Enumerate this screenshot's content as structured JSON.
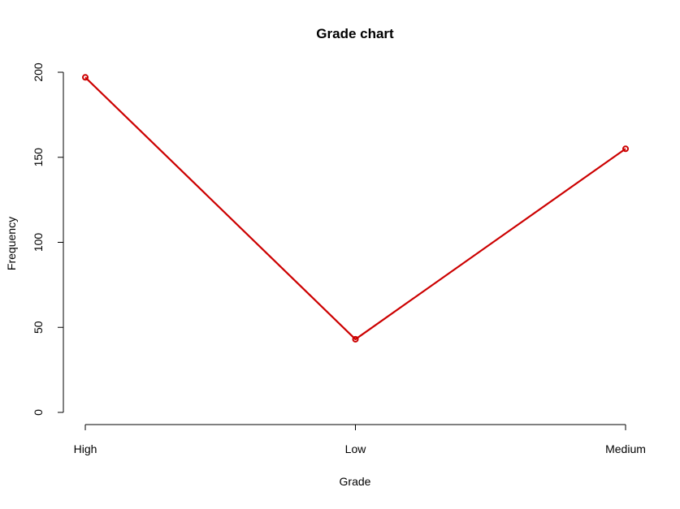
{
  "chart_data": {
    "type": "line",
    "title": "Grade chart",
    "xlabel": "Grade",
    "ylabel": "Frequency",
    "categories": [
      "High",
      "Low",
      "Medium"
    ],
    "series": [
      {
        "values": [
          197,
          43,
          155
        ]
      }
    ],
    "ylim": [
      0,
      200
    ],
    "yticks": [
      0,
      50,
      100,
      150,
      200
    ],
    "grid": false,
    "legend": "none",
    "line_color": "#cc0000"
  }
}
